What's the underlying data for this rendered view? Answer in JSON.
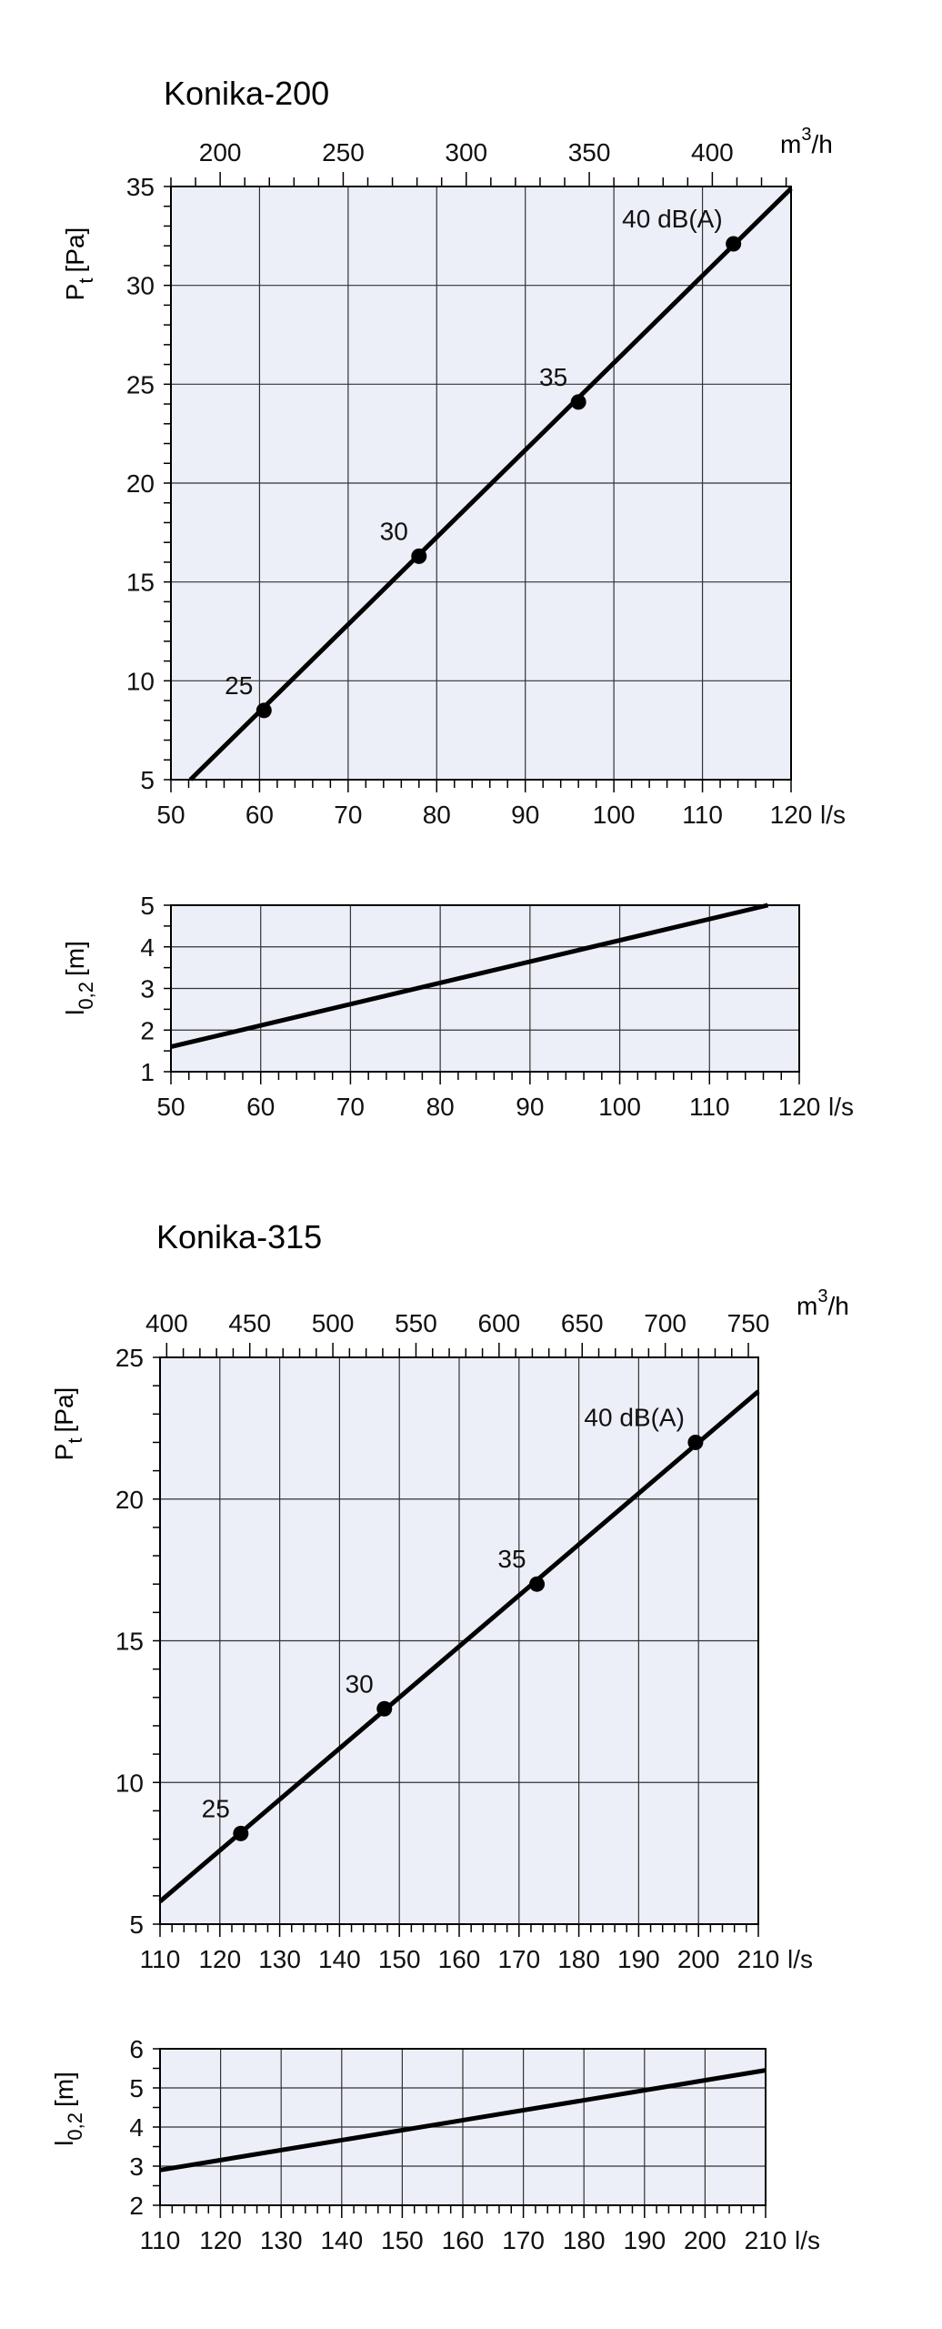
{
  "colors": {
    "plot_background": "#eceff7",
    "grid": "#333333",
    "line": "#000000",
    "text": "#111111"
  },
  "charts": [
    {
      "title": "Konika-200",
      "pressure": {
        "xlabel": "l/s",
        "ylabel_main": "P",
        "ylabel_sub": "t",
        "ylabel_unit": "[Pa]",
        "x_ticks": [
          "50",
          "60",
          "70",
          "80",
          "90",
          "100",
          "110",
          "120"
        ],
        "y_ticks": [
          "5",
          "10",
          "15",
          "20",
          "25",
          "30",
          "35"
        ],
        "top_axis_unit_base": "m",
        "top_axis_unit_sup": "3",
        "top_axis_unit_tail": "/h",
        "top_ticks": [
          "200",
          "250",
          "300",
          "350",
          "400"
        ]
      },
      "throw": {
        "xlabel": "l/s",
        "ylabel_main": "l",
        "ylabel_sub": "0,2",
        "ylabel_unit": "[m]",
        "x_ticks": [
          "50",
          "60",
          "70",
          "80",
          "90",
          "100",
          "110",
          "120"
        ],
        "y_ticks": [
          "1",
          "2",
          "3",
          "4",
          "5"
        ]
      },
      "point_labels": [
        "25",
        "30",
        "35",
        "40 dB(A)"
      ]
    },
    {
      "title": "Konika-315",
      "pressure": {
        "xlabel": "l/s",
        "ylabel_main": "P",
        "ylabel_sub": "t",
        "ylabel_unit": "[Pa]",
        "x_ticks": [
          "110",
          "120",
          "130",
          "140",
          "150",
          "160",
          "170",
          "180",
          "190",
          "200",
          "210"
        ],
        "y_ticks": [
          "5",
          "10",
          "15",
          "20",
          "25"
        ],
        "top_axis_unit_base": "m",
        "top_axis_unit_sup": "3",
        "top_axis_unit_tail": "/h",
        "top_ticks": [
          "400",
          "450",
          "500",
          "550",
          "600",
          "650",
          "700",
          "750"
        ]
      },
      "throw": {
        "xlabel": "l/s",
        "ylabel_main": "l",
        "ylabel_sub": "0,2",
        "ylabel_unit": "[m]",
        "x_ticks": [
          "110",
          "120",
          "130",
          "140",
          "150",
          "160",
          "170",
          "180",
          "190",
          "200",
          "210"
        ],
        "y_ticks": [
          "2",
          "3",
          "4",
          "5",
          "6"
        ]
      },
      "point_labels": [
        "25",
        "30",
        "35",
        "40 dB(A)"
      ]
    }
  ],
  "chart_data": [
    {
      "type": "line",
      "title": "Konika-200",
      "xlabel": "l/s",
      "ylabel": "Pt [Pa]",
      "xlim": [
        50,
        120
      ],
      "ylim": [
        5,
        35
      ],
      "x_ticks": [
        50,
        60,
        70,
        80,
        90,
        100,
        110,
        120
      ],
      "y_ticks": [
        5,
        10,
        15,
        20,
        25,
        30,
        35
      ],
      "secondary_x": {
        "label": "m3/h",
        "ticks": [
          200,
          250,
          300,
          350,
          400
        ],
        "factor": 3.6
      },
      "grid": true,
      "series": [
        {
          "x": [
            52.2,
            120
          ],
          "y": [
            5,
            34.9
          ]
        }
      ],
      "points": [
        {
          "label": "25",
          "x": 60.5,
          "y": 8.5
        },
        {
          "label": "30",
          "x": 78,
          "y": 16.3
        },
        {
          "label": "35",
          "x": 96,
          "y": 24.1
        },
        {
          "label": "40 dB(A)",
          "x": 113.5,
          "y": 32.1
        }
      ]
    },
    {
      "type": "line",
      "title": "",
      "xlabel": "l/s",
      "ylabel": "l0,2 [m]",
      "xlim": [
        50,
        120
      ],
      "ylim": [
        1,
        5
      ],
      "x_ticks": [
        50,
        60,
        70,
        80,
        90,
        100,
        110,
        120
      ],
      "y_ticks": [
        1,
        2,
        3,
        4,
        5
      ],
      "grid": true,
      "series": [
        {
          "x": [
            50,
            116.5
          ],
          "y": [
            1.6,
            5
          ]
        }
      ]
    },
    {
      "type": "line",
      "title": "Konika-315",
      "xlabel": "l/s",
      "ylabel": "Pt [Pa]",
      "xlim": [
        110,
        210
      ],
      "ylim": [
        5,
        25
      ],
      "x_ticks": [
        110,
        120,
        130,
        140,
        150,
        160,
        170,
        180,
        190,
        200,
        210
      ],
      "y_ticks": [
        5,
        10,
        15,
        20,
        25
      ],
      "secondary_x": {
        "label": "m3/h",
        "ticks": [
          400,
          450,
          500,
          550,
          600,
          650,
          700,
          750
        ],
        "factor": 3.6
      },
      "grid": true,
      "series": [
        {
          "x": [
            110,
            210
          ],
          "y": [
            5.8,
            23.8
          ]
        }
      ],
      "points": [
        {
          "label": "25",
          "x": 123.5,
          "y": 8.2
        },
        {
          "label": "30",
          "x": 147.5,
          "y": 12.6
        },
        {
          "label": "35",
          "x": 173,
          "y": 17
        },
        {
          "label": "40 dB(A)",
          "x": 199.5,
          "y": 22
        }
      ]
    },
    {
      "type": "line",
      "title": "",
      "xlabel": "l/s",
      "ylabel": "l0,2 [m]",
      "xlim": [
        110,
        210
      ],
      "ylim": [
        2,
        6
      ],
      "x_ticks": [
        110,
        120,
        130,
        140,
        150,
        160,
        170,
        180,
        190,
        200,
        210
      ],
      "y_ticks": [
        2,
        3,
        4,
        5,
        6
      ],
      "grid": true,
      "series": [
        {
          "x": [
            110,
            210
          ],
          "y": [
            2.9,
            5.45
          ]
        }
      ]
    }
  ]
}
